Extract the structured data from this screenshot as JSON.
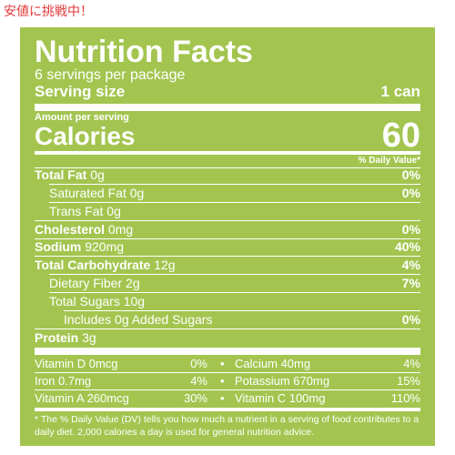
{
  "banner": "安値に挑戦中！",
  "label": {
    "title": "Nutrition Facts",
    "servings": "6 servings per package",
    "serving_size": {
      "label": "Serving size",
      "value": "1 can"
    },
    "amount_per_serving": "Amount per serving",
    "calories": {
      "label": "Calories",
      "value": "60"
    },
    "dv_header": "% Daily Value*",
    "rows": [
      {
        "name": "Total Fat",
        "amount": "0g",
        "dv": "0%"
      },
      {
        "name": "Saturated Fat",
        "amount": "0g",
        "dv": "0%"
      },
      {
        "name": "Trans Fat",
        "amount": "0g"
      },
      {
        "name": "Cholesterol",
        "amount": "0mg",
        "dv": "0%"
      },
      {
        "name": "Sodium",
        "amount": "920mg",
        "dv": "40%"
      },
      {
        "name": "Total Carbohydrate",
        "amount": "12g",
        "dv": "4%"
      },
      {
        "name": "Dietary Fiber",
        "amount": "2g",
        "dv": "7%"
      },
      {
        "name": "Total Sugars",
        "amount": "10g"
      },
      {
        "name": "Includes 0g Added Sugars",
        "dv": "0%"
      },
      {
        "name": "Protein",
        "amount": "3g"
      }
    ],
    "vitamins": [
      [
        {
          "name": "Vitamin D 0mcg",
          "dv": "0%"
        },
        {
          "name": "Calcium 40mg",
          "dv": "4%"
        }
      ],
      [
        {
          "name": "Iron 0.7mg",
          "dv": "4%"
        },
        {
          "name": "Potassium 670mg",
          "dv": "15%"
        }
      ],
      [
        {
          "name": "Vitamin A 260mcg",
          "dv": "30%"
        },
        {
          "name": "Vitamin C 100mg",
          "dv": "110%"
        }
      ]
    ],
    "footnote": "* The % Daily Value (DV) tells you how much a nutrient in a serving of food contributes to a daily diet. 2,000 calories a day is used for general nutrition advice."
  }
}
